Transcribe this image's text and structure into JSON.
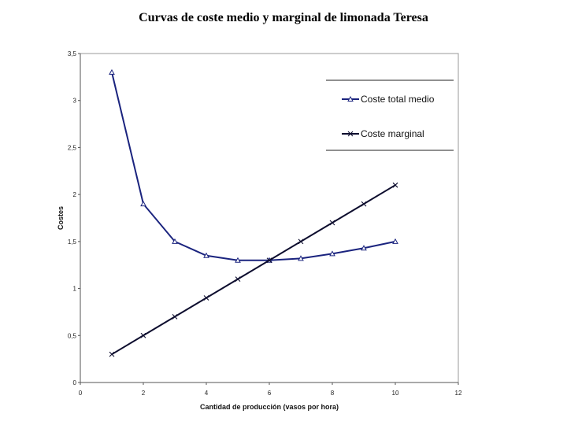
{
  "chart_data": {
    "type": "line",
    "title": "Curvas de coste medio y marginal de limonada Teresa",
    "xlabel": "Cantidad de producción (vasos por hora)",
    "ylabel": "Costes",
    "xlim": [
      0,
      12
    ],
    "ylim": [
      0,
      3.5
    ],
    "x_ticks": [
      "0",
      "2",
      "4",
      "6",
      "8",
      "10",
      "12"
    ],
    "y_ticks": [
      "0",
      "0,5",
      "1",
      "1,5",
      "2",
      "2,5",
      "3",
      "3,5"
    ],
    "grid": false,
    "legend_position": "top-right",
    "series": [
      {
        "name": "Coste total medio",
        "color": "#1a237e",
        "marker": "triangle",
        "x": [
          1,
          2,
          3,
          4,
          5,
          6,
          7,
          8,
          9,
          10
        ],
        "y": [
          3.3,
          1.9,
          1.5,
          1.35,
          1.3,
          1.3,
          1.32,
          1.37,
          1.43,
          1.5
        ]
      },
      {
        "name": "Coste marginal",
        "color": "#0d0d2e",
        "marker": "x",
        "x": [
          1,
          2,
          3,
          4,
          5,
          6,
          7,
          8,
          9,
          10
        ],
        "y": [
          0.3,
          0.5,
          0.7,
          0.9,
          1.1,
          1.3,
          1.5,
          1.7,
          1.9,
          2.1
        ]
      }
    ]
  }
}
